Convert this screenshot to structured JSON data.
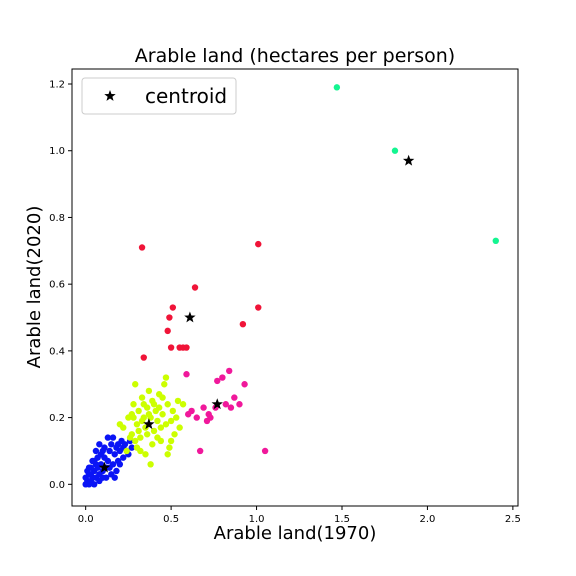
{
  "chart_data": {
    "type": "scatter",
    "title": "Arable land (hectares per person)",
    "xlabel": "Arable land(1970)",
    "ylabel": "Arable land(2020)",
    "xlim": [
      -0.08,
      2.53
    ],
    "ylim": [
      -0.065,
      1.245
    ],
    "xticks": [
      0.0,
      0.5,
      1.0,
      1.5,
      2.0,
      2.5
    ],
    "xtick_labels": [
      "0.0",
      "0.5",
      "1.0",
      "1.5",
      "2.0",
      "2.5"
    ],
    "yticks": [
      0.0,
      0.2,
      0.4,
      0.6,
      0.8,
      1.0,
      1.2
    ],
    "ytick_labels": [
      "0.0",
      "0.2",
      "0.4",
      "0.6",
      "0.8",
      "1.0",
      "1.2"
    ],
    "grid": false,
    "legend": {
      "placement": "top-left",
      "entries": [
        {
          "label": "centroid",
          "marker": "star",
          "color": "#000000"
        }
      ]
    },
    "series": [
      {
        "color": "#0a14f5",
        "points": [
          [
            0.0,
            0.0
          ],
          [
            0.01,
            0.01
          ],
          [
            0.02,
            0.0
          ],
          [
            0.0,
            0.02
          ],
          [
            0.03,
            0.01
          ],
          [
            0.02,
            0.03
          ],
          [
            0.04,
            0.02
          ],
          [
            0.05,
            0.04
          ],
          [
            0.03,
            0.05
          ],
          [
            0.06,
            0.02
          ],
          [
            0.07,
            0.05
          ],
          [
            0.05,
            0.07
          ],
          [
            0.08,
            0.03
          ],
          [
            0.09,
            0.06
          ],
          [
            0.1,
            0.04
          ],
          [
            0.11,
            0.08
          ],
          [
            0.12,
            0.05
          ],
          [
            0.1,
            0.1
          ],
          [
            0.13,
            0.07
          ],
          [
            0.14,
            0.1
          ],
          [
            0.15,
            0.12
          ],
          [
            0.16,
            0.06
          ],
          [
            0.17,
            0.09
          ],
          [
            0.18,
            0.11
          ],
          [
            0.19,
            0.07
          ],
          [
            0.2,
            0.1
          ],
          [
            0.21,
            0.13
          ],
          [
            0.22,
            0.08
          ],
          [
            0.23,
            0.12
          ],
          [
            0.24,
            0.1
          ],
          [
            0.25,
            0.09
          ],
          [
            0.27,
            0.11
          ],
          [
            0.08,
            0.12
          ],
          [
            0.06,
            0.1
          ],
          [
            0.04,
            0.07
          ],
          [
            0.12,
            0.02
          ],
          [
            0.15,
            0.03
          ],
          [
            0.18,
            0.04
          ],
          [
            0.2,
            0.06
          ],
          [
            0.07,
            0.08
          ],
          [
            0.11,
            0.11
          ],
          [
            0.13,
            0.14
          ],
          [
            0.16,
            0.14
          ],
          [
            0.09,
            0.09
          ],
          [
            0.03,
            0.03
          ],
          [
            0.01,
            0.04
          ],
          [
            0.06,
            0.06
          ],
          [
            0.14,
            0.05
          ],
          [
            0.02,
            0.05
          ],
          [
            0.05,
            0.0
          ],
          [
            0.1,
            0.02
          ],
          [
            0.17,
            0.02
          ],
          [
            0.22,
            0.11
          ],
          [
            0.26,
            0.13
          ],
          [
            0.19,
            0.12
          ],
          [
            0.08,
            0.01
          ]
        ]
      },
      {
        "color": "#ccff00",
        "points": [
          [
            0.22,
            0.17
          ],
          [
            0.25,
            0.2
          ],
          [
            0.27,
            0.15
          ],
          [
            0.28,
            0.24
          ],
          [
            0.29,
            0.3
          ],
          [
            0.3,
            0.18
          ],
          [
            0.31,
            0.22
          ],
          [
            0.32,
            0.14
          ],
          [
            0.33,
            0.26
          ],
          [
            0.34,
            0.2
          ],
          [
            0.35,
            0.17
          ],
          [
            0.36,
            0.23
          ],
          [
            0.37,
            0.28
          ],
          [
            0.38,
            0.2
          ],
          [
            0.39,
            0.25
          ],
          [
            0.4,
            0.16
          ],
          [
            0.41,
            0.22
          ],
          [
            0.42,
            0.19
          ],
          [
            0.43,
            0.27
          ],
          [
            0.44,
            0.13
          ],
          [
            0.45,
            0.21
          ],
          [
            0.46,
            0.3
          ],
          [
            0.47,
            0.18
          ],
          [
            0.48,
            0.24
          ],
          [
            0.49,
            0.11
          ],
          [
            0.5,
            0.19
          ],
          [
            0.51,
            0.22
          ],
          [
            0.52,
            0.15
          ],
          [
            0.53,
            0.2
          ],
          [
            0.54,
            0.25
          ],
          [
            0.55,
            0.17
          ],
          [
            0.57,
            0.24
          ],
          [
            0.35,
            0.09
          ],
          [
            0.38,
            0.06
          ],
          [
            0.3,
            0.11
          ],
          [
            0.26,
            0.14
          ],
          [
            0.2,
            0.18
          ],
          [
            0.24,
            0.1
          ],
          [
            0.42,
            0.14
          ],
          [
            0.47,
            0.32
          ],
          [
            0.4,
            0.24
          ],
          [
            0.33,
            0.19
          ],
          [
            0.36,
            0.15
          ],
          [
            0.28,
            0.2
          ],
          [
            0.45,
            0.26
          ],
          [
            0.5,
            0.13
          ],
          [
            0.32,
            0.1
          ],
          [
            0.39,
            0.12
          ],
          [
            0.34,
            0.24
          ],
          [
            0.44,
            0.17
          ],
          [
            0.27,
            0.21
          ],
          [
            0.31,
            0.16
          ],
          [
            0.48,
            0.09
          ],
          [
            0.37,
            0.21
          ],
          [
            0.43,
            0.23
          ],
          [
            0.29,
            0.13
          ]
        ]
      },
      {
        "color": "#f0189b",
        "points": [
          [
            0.67,
            0.1
          ],
          [
            0.71,
            0.19
          ],
          [
            0.73,
            0.2
          ],
          [
            0.77,
            0.31
          ],
          [
            0.8,
            0.32
          ],
          [
            0.84,
            0.34
          ],
          [
            0.85,
            0.23
          ],
          [
            0.87,
            0.26
          ],
          [
            0.9,
            0.24
          ],
          [
            0.93,
            0.3
          ],
          [
            1.05,
            0.1
          ],
          [
            0.59,
            0.33
          ],
          [
            0.62,
            0.22
          ],
          [
            0.65,
            0.2
          ],
          [
            0.69,
            0.23
          ],
          [
            0.6,
            0.21
          ],
          [
            0.76,
            0.23
          ],
          [
            0.82,
            0.24
          ],
          [
            0.72,
            0.21
          ]
        ]
      },
      {
        "color": "#f01438",
        "points": [
          [
            0.33,
            0.71
          ],
          [
            0.34,
            0.38
          ],
          [
            0.48,
            0.46
          ],
          [
            0.49,
            0.5
          ],
          [
            0.5,
            0.41
          ],
          [
            0.51,
            0.53
          ],
          [
            0.55,
            0.41
          ],
          [
            0.57,
            0.41
          ],
          [
            0.59,
            0.41
          ],
          [
            0.64,
            0.59
          ],
          [
            0.92,
            0.48
          ],
          [
            1.01,
            0.53
          ],
          [
            1.01,
            0.72
          ]
        ]
      },
      {
        "color": "#14f591",
        "points": [
          [
            1.47,
            1.19
          ],
          [
            1.81,
            1.0
          ],
          [
            2.4,
            0.73
          ]
        ]
      }
    ],
    "centroids": [
      [
        0.11,
        0.05
      ],
      [
        0.37,
        0.18
      ],
      [
        0.77,
        0.24
      ],
      [
        0.61,
        0.5
      ],
      [
        1.89,
        0.97
      ]
    ]
  }
}
